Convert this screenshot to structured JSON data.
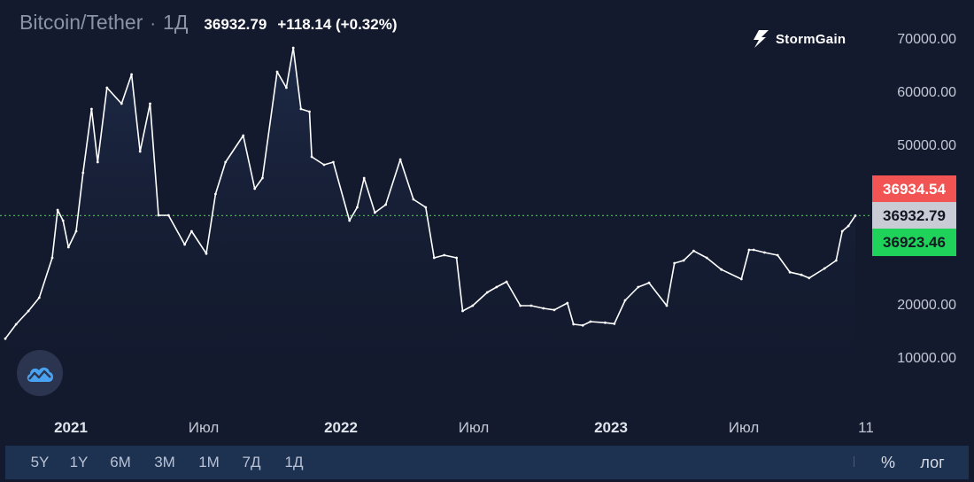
{
  "header": {
    "title": "Bitcoin/Tether",
    "separator": "·",
    "interval": "1Д",
    "price": "36932.79",
    "change": "+118.14 (+0.32%)"
  },
  "brand": {
    "name": "StormGain",
    "icon": "lightning-bolt-icon"
  },
  "badges": {
    "ask": "36934.54",
    "last": "36932.79",
    "bid": "36923.46"
  },
  "toolbar": {
    "ranges": [
      "5Y",
      "1Y",
      "6M",
      "3M",
      "1M",
      "7Д",
      "1Д"
    ],
    "percent": "%",
    "log": "лог"
  },
  "colors": {
    "background": "#131a2e",
    "line": "#ffffff",
    "ask": "#f25353",
    "bid": "#1fd35a",
    "last": "#c9ccd5",
    "price_line": "#4caf50"
  },
  "chart_data": {
    "type": "line",
    "title": "Bitcoin/Tether",
    "interval": "1Д",
    "xlabel": "",
    "ylabel": "",
    "ylim": [
      0,
      75000
    ],
    "y_ticks": [
      "70000.00",
      "60000.00",
      "50000.00",
      "40000.00",
      "30000.00",
      "20000.00",
      "10000.00"
    ],
    "x_ticks": [
      "2021",
      "Июл",
      "2022",
      "Июл",
      "2023",
      "Июл",
      "11"
    ],
    "grid": false,
    "current_price": 36932.79,
    "series": [
      {
        "x": [
          "2020-11-01",
          "2020-11-15",
          "2020-12-01",
          "2020-12-15",
          "2021-01-01",
          "2021-01-08",
          "2021-01-15",
          "2021-01-22",
          "2021-02-01",
          "2021-02-10",
          "2021-02-21",
          "2021-03-01",
          "2021-03-13",
          "2021-04-01",
          "2021-04-14",
          "2021-04-25",
          "2021-05-08",
          "2021-05-19",
          "2021-06-01",
          "2021-06-22",
          "2021-07-01",
          "2021-07-20",
          "2021-08-01",
          "2021-08-14",
          "2021-09-06",
          "2021-09-21",
          "2021-10-01",
          "2021-10-20",
          "2021-11-01",
          "2021-11-10",
          "2021-11-20",
          "2021-12-01",
          "2021-12-04",
          "2021-12-20",
          "2022-01-01",
          "2022-01-22",
          "2022-02-01",
          "2022-02-10",
          "2022-02-24",
          "2022-03-10",
          "2022-03-29",
          "2022-04-15",
          "2022-05-01",
          "2022-05-12",
          "2022-05-25",
          "2022-06-10",
          "2022-06-18",
          "2022-07-01",
          "2022-07-20",
          "2022-08-01",
          "2022-08-14",
          "2022-09-01",
          "2022-09-15",
          "2022-10-01",
          "2022-10-15",
          "2022-11-01",
          "2022-11-09",
          "2022-11-21",
          "2022-12-01",
          "2022-12-20",
          "2023-01-01",
          "2023-01-15",
          "2023-02-01",
          "2023-02-15",
          "2023-03-10",
          "2023-03-20",
          "2023-04-01",
          "2023-04-14",
          "2023-05-01",
          "2023-05-20",
          "2023-06-15",
          "2023-06-25",
          "2023-07-01",
          "2023-07-15",
          "2023-08-01",
          "2023-08-17",
          "2023-09-01",
          "2023-09-11",
          "2023-10-01",
          "2023-10-16",
          "2023-10-24",
          "2023-11-01",
          "2023-11-10"
        ],
        "values": [
          13800,
          16500,
          19000,
          21500,
          29000,
          38000,
          36000,
          31000,
          34000,
          45000,
          57000,
          47000,
          61000,
          58000,
          63500,
          49000,
          58000,
          37000,
          37000,
          31500,
          34000,
          29800,
          41000,
          47000,
          52000,
          42000,
          44000,
          64000,
          61000,
          68500,
          57000,
          56500,
          48000,
          46500,
          47000,
          36000,
          38500,
          44000,
          37500,
          39000,
          47500,
          40000,
          38500,
          29000,
          29500,
          29000,
          19000,
          20000,
          22500,
          23500,
          24500,
          20000,
          20000,
          19500,
          19200,
          20500,
          16500,
          16300,
          17000,
          16800,
          16600,
          21000,
          23500,
          24300,
          20000,
          28000,
          28500,
          30300,
          29000,
          26800,
          25000,
          30500,
          30500,
          30000,
          29500,
          26300,
          25800,
          25200,
          27000,
          28500,
          34000,
          35000,
          36932.79
        ]
      }
    ]
  }
}
